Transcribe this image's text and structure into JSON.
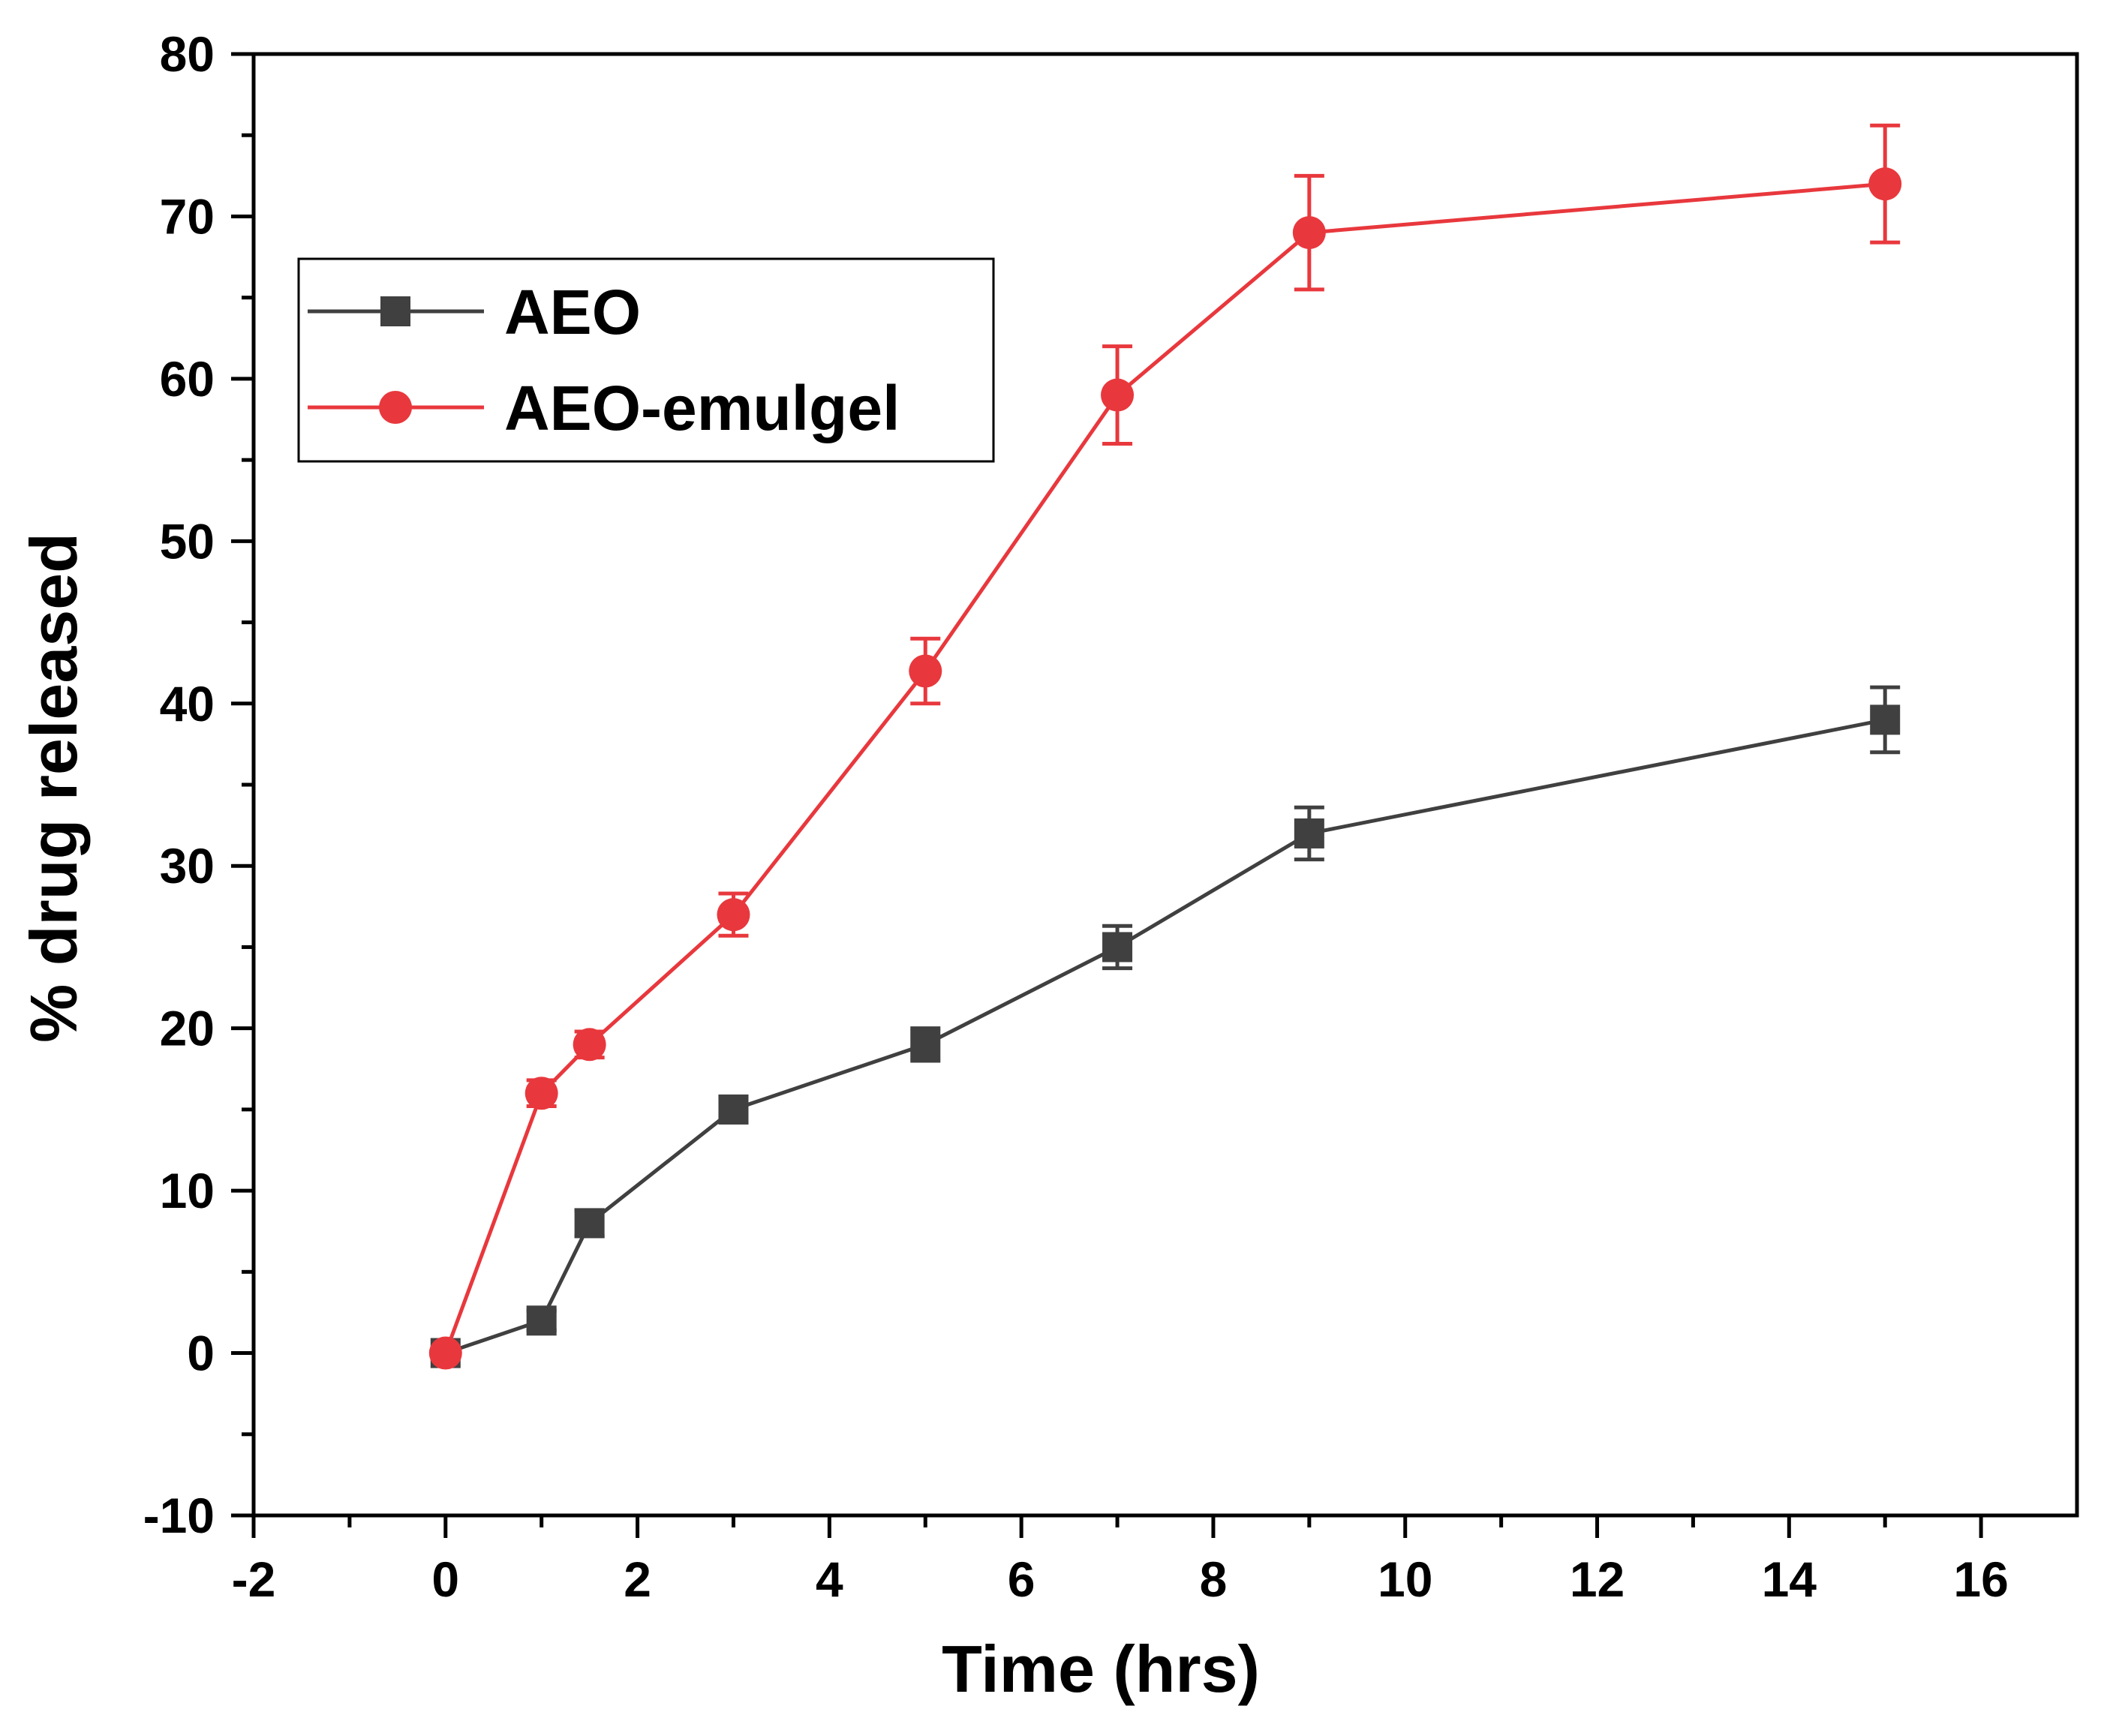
{
  "chart_data": {
    "type": "line",
    "title": "",
    "xlabel": "Time (hrs)",
    "ylabel": "% drug released",
    "xlim": [
      -2,
      17
    ],
    "ylim": [
      -10,
      80
    ],
    "x_major_ticks": [
      -2,
      0,
      2,
      4,
      6,
      8,
      10,
      12,
      14,
      16
    ],
    "y_major_ticks": [
      -10,
      0,
      10,
      20,
      30,
      40,
      50,
      60,
      70,
      80
    ],
    "x_minor_step": 1,
    "y_minor_step": 5,
    "grid": false,
    "legend_position": "top-left",
    "series": [
      {
        "name": "AEO",
        "color": "#404040",
        "marker": "square",
        "x": [
          0,
          1,
          1.5,
          3,
          5,
          7,
          9,
          15
        ],
        "y": [
          0,
          2,
          8,
          15,
          19,
          25,
          32,
          39
        ],
        "error": [
          0.3,
          0.6,
          0.8,
          0.8,
          1.0,
          1.3,
          1.6,
          2.0
        ]
      },
      {
        "name": "AEO-emulgel",
        "color": "#e8383d",
        "marker": "circle",
        "x": [
          0,
          1,
          1.5,
          3,
          5,
          7,
          9,
          15
        ],
        "y": [
          0,
          16,
          19,
          27,
          42,
          59,
          69,
          72
        ],
        "error": [
          0.3,
          0.8,
          0.8,
          1.3,
          2.0,
          3.0,
          3.5,
          3.6
        ]
      }
    ]
  }
}
